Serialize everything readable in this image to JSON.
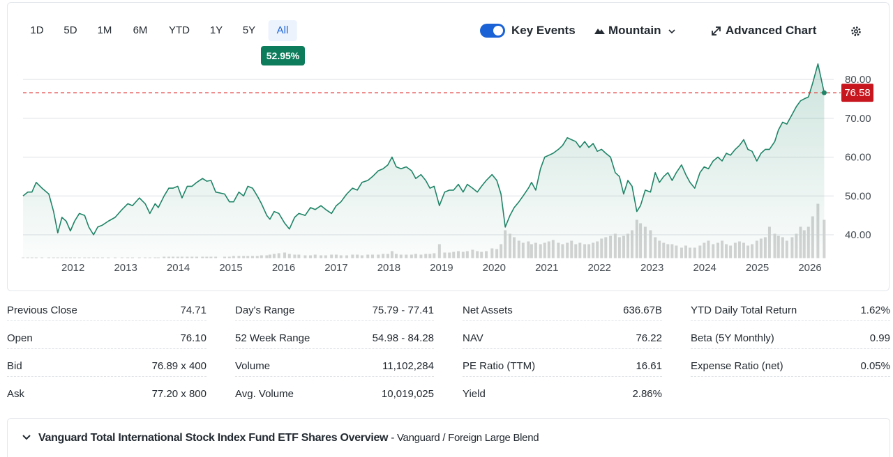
{
  "range_tabs": [
    "1D",
    "5D",
    "1M",
    "6M",
    "YTD",
    "1Y",
    "5Y",
    "All"
  ],
  "selected_range_index": 7,
  "range_change": "52.95%",
  "toolbar": {
    "key_events": "Key Events",
    "key_events_on": true,
    "chart_style": "Mountain",
    "advanced_chart": "Advanced Chart"
  },
  "chart_data": {
    "type": "area",
    "color": "#1f8466",
    "volume_color": "#d4d4d4",
    "last_label_color": "#c8161e",
    "xlim": [
      2011.05,
      2026.45
    ],
    "xticks": [
      2012,
      2013,
      2014,
      2015,
      2016,
      2017,
      2018,
      2019,
      2020,
      2021,
      2022,
      2023,
      2024,
      2025,
      2026
    ],
    "ylim": [
      34,
      84.4
    ],
    "yticks": [
      {
        "value": 40,
        "label": "40.00"
      },
      {
        "value": 50,
        "label": "50.00"
      },
      {
        "value": 60,
        "label": "60.00"
      },
      {
        "value": 70,
        "label": "70.00"
      },
      {
        "value": 80,
        "label": "80.00"
      }
    ],
    "y2lim": [
      0,
      100
    ],
    "grid": true,
    "x": [
      2011.05,
      2011.14,
      2011.22,
      2011.3,
      2011.41,
      2011.54,
      2011.63,
      2011.71,
      2011.79,
      2011.87,
      2011.95,
      2012.03,
      2012.12,
      2012.22,
      2012.3,
      2012.39,
      2012.47,
      2012.56,
      2012.67,
      2012.8,
      2012.93,
      2013.04,
      2013.13,
      2013.26,
      2013.37,
      2013.46,
      2013.56,
      2013.62,
      2013.73,
      2013.82,
      2013.9,
      2013.99,
      2014.07,
      2014.17,
      2014.26,
      2014.35,
      2014.46,
      2014.54,
      2014.62,
      2014.71,
      2014.88,
      2014.97,
      2015.05,
      2015.15,
      2015.24,
      2015.32,
      2015.41,
      2015.5,
      2015.58,
      2015.68,
      2015.74,
      2015.82,
      2015.91,
      2016.02,
      2016.11,
      2016.21,
      2016.29,
      2016.41,
      2016.51,
      2016.6,
      2016.71,
      2016.8,
      2016.91,
      2017.0,
      2017.09,
      2017.2,
      2017.31,
      2017.4,
      2017.49,
      2017.6,
      2017.69,
      2017.8,
      2017.89,
      2017.98,
      2018.06,
      2018.14,
      2018.23,
      2018.33,
      2018.43,
      2018.51,
      2018.61,
      2018.7,
      2018.78,
      2018.86,
      2018.96,
      2019.06,
      2019.15,
      2019.23,
      2019.32,
      2019.41,
      2019.49,
      2019.59,
      2019.68,
      2019.76,
      2019.85,
      2019.96,
      2020.05,
      2020.13,
      2020.21,
      2020.3,
      2020.38,
      2020.47,
      2020.55,
      2020.65,
      2020.71,
      2020.79,
      2020.88,
      2020.96,
      2021.04,
      2021.12,
      2021.22,
      2021.3,
      2021.39,
      2021.47,
      2021.55,
      2021.63,
      2021.72,
      2021.8,
      2021.88,
      2021.96,
      2022.04,
      2022.12,
      2022.21,
      2022.3,
      2022.38,
      2022.46,
      2022.54,
      2022.62,
      2022.71,
      2022.78,
      2022.87,
      2022.97,
      2023.06,
      2023.14,
      2023.22,
      2023.3,
      2023.38,
      2023.46,
      2023.56,
      2023.64,
      2023.72,
      2023.81,
      2023.91,
      2023.99,
      2024.07,
      2024.16,
      2024.25,
      2024.33,
      2024.41,
      2024.49,
      2024.58,
      2024.66,
      2024.74,
      2024.82,
      2024.9,
      2024.99,
      2025.07,
      2025.15,
      2025.23,
      2025.33,
      2025.4,
      2025.48,
      2025.56,
      2025.66,
      2025.74,
      2025.82,
      2025.89,
      2025.97,
      2026.05,
      2026.15,
      2026.27
    ],
    "values": [
      50,
      51,
      51,
      53.5,
      52,
      50.5,
      46,
      40.5,
      44.5,
      43.5,
      41,
      43.5,
      45.5,
      45,
      42,
      40,
      42,
      42.5,
      43.5,
      44.5,
      46.5,
      48,
      47.5,
      49.5,
      48,
      45.5,
      48,
      47,
      50,
      52,
      52,
      52.5,
      49.5,
      52.5,
      52.5,
      53.5,
      54.5,
      53.8,
      54,
      51,
      50.5,
      48.5,
      48.5,
      51,
      50,
      52.5,
      52,
      50,
      48,
      45,
      44,
      46,
      45.5,
      43,
      41.5,
      44.5,
      45.5,
      45,
      47,
      46.5,
      47.5,
      46.5,
      45.5,
      47.5,
      48.5,
      50.5,
      52,
      51.5,
      53.5,
      54,
      55,
      56.5,
      57,
      58,
      60,
      57.5,
      57,
      57.5,
      56.5,
      54.5,
      55.5,
      54,
      52,
      52.5,
      47.5,
      51,
      51.5,
      51.5,
      53,
      51,
      53,
      52,
      51,
      52.5,
      54,
      55.5,
      54,
      50.5,
      42,
      45,
      47,
      48.5,
      50,
      52,
      53.5,
      51.5,
      57,
      60,
      60.5,
      61,
      62,
      63,
      65,
      64.5,
      64,
      62.5,
      64,
      62.5,
      63.5,
      61.5,
      62,
      61,
      60,
      56,
      55,
      50.5,
      54,
      52.5,
      46,
      47.5,
      51.5,
      51,
      56,
      53.5,
      55,
      56,
      54,
      56,
      58,
      55.5,
      53.5,
      52,
      56,
      57.5,
      57,
      59,
      60,
      59,
      61,
      60.5,
      62,
      63,
      64.5,
      62,
      61.5,
      59,
      61,
      62,
      62,
      64,
      67,
      69,
      68.5,
      71,
      73,
      74.5,
      75,
      75.5,
      79,
      84,
      76.58
    ],
    "volume": [
      1,
      1,
      1,
      1,
      1,
      1,
      1,
      1,
      1,
      1,
      1,
      1,
      1,
      1,
      1,
      1,
      1,
      1,
      1,
      1,
      1,
      1,
      1,
      1,
      1,
      1,
      1,
      1,
      2,
      2,
      2,
      2,
      2,
      2,
      2,
      2,
      2,
      2,
      2,
      2,
      2,
      2,
      3,
      3,
      3,
      3,
      3,
      3,
      4,
      4,
      5,
      6,
      7,
      8,
      6,
      5,
      5,
      4,
      4,
      5,
      4,
      4,
      5,
      5,
      4,
      4,
      5,
      5,
      4,
      5,
      5,
      5,
      6,
      6,
      10,
      6,
      5,
      5,
      5,
      6,
      5,
      6,
      6,
      7,
      20,
      8,
      8,
      9,
      10,
      9,
      10,
      12,
      10,
      9,
      10,
      14,
      13,
      20,
      40,
      35,
      30,
      25,
      22,
      24,
      20,
      22,
      20,
      22,
      24,
      26,
      22,
      20,
      22,
      25,
      20,
      22,
      20,
      20,
      22,
      24,
      28,
      30,
      32,
      35,
      30,
      32,
      35,
      40,
      55,
      50,
      45,
      40,
      30,
      25,
      22,
      20,
      20,
      18,
      15,
      18,
      15,
      15,
      18,
      22,
      25,
      20,
      22,
      25,
      20,
      18,
      22,
      24,
      22,
      18,
      20,
      25,
      28,
      30,
      45,
      35,
      32,
      30,
      25,
      30,
      35,
      45,
      40,
      45,
      60,
      78,
      55
    ]
  },
  "stats": [
    [
      [
        "Previous Close",
        "74.71"
      ],
      [
        "Open",
        "76.10"
      ],
      [
        "Bid",
        "76.89 x 400"
      ],
      [
        "Ask",
        "77.20 x 800"
      ]
    ],
    [
      [
        "Day's Range",
        "75.79 - 77.41"
      ],
      [
        "52 Week Range",
        "54.98 - 84.28"
      ],
      [
        "Volume",
        "11,102,284"
      ],
      [
        "Avg. Volume",
        "10,019,025"
      ]
    ],
    [
      [
        "Net Assets",
        "636.67B"
      ],
      [
        "NAV",
        "76.22"
      ],
      [
        "PE Ratio (TTM)",
        "16.61"
      ],
      [
        "Yield",
        "2.86%"
      ]
    ],
    [
      [
        "YTD Daily Total Return",
        "1.62%"
      ],
      [
        "Beta (5Y Monthly)",
        "0.99"
      ],
      [
        "Expense Ratio (net)",
        "0.05%"
      ]
    ]
  ],
  "overview": {
    "title": "Vanguard Total International Stock Index Fund ETF Shares Overview",
    "subtitle": "- Vanguard / Foreign Large Blend"
  }
}
